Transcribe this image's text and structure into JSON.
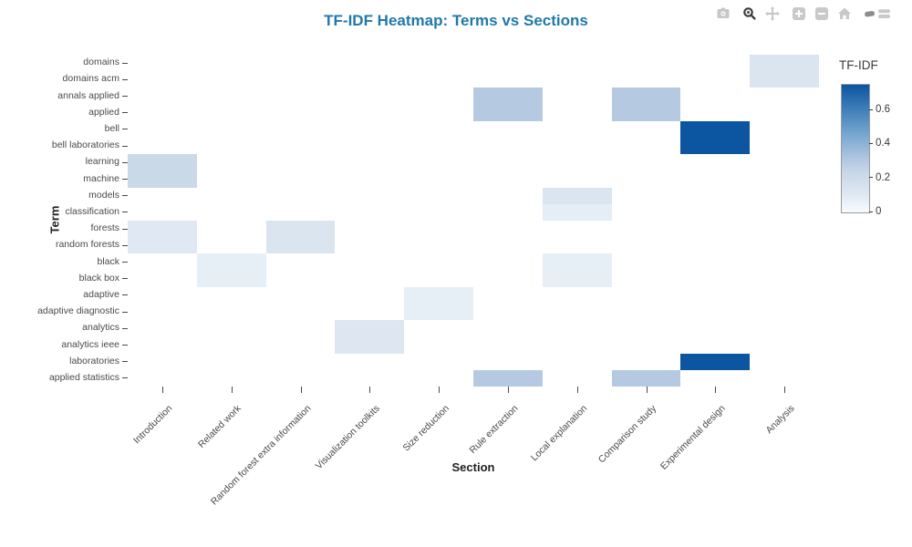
{
  "colors": {
    "title_accent": "#2079a9",
    "dark_cell": "#0b55a1",
    "tick_text": "#4a4a4a"
  },
  "modebar": {
    "icons": [
      "camera-icon",
      "zoom-icon",
      "pan-icon",
      "zoom-in-icon",
      "zoom-out-icon",
      "home-icon",
      "plotly-logo-icon"
    ]
  },
  "chart_data": {
    "type": "heatmap",
    "title": "TF-IDF Heatmap: Terms vs Sections",
    "xlabel": "Section",
    "ylabel": "Term",
    "colorbar_title": "TF-IDF",
    "colorbar_ticks": [
      0,
      0.2,
      0.4,
      0.6
    ],
    "zmin": 0,
    "zmax": 0.75,
    "legend_position": "right",
    "grid": false,
    "x_categories": [
      "Introduction",
      "Related work",
      "Random forest extra information",
      "Visualization toolkits",
      "Size reduction",
      "Rule extraction",
      "Local explanation",
      "Comparison study",
      "Experimental design",
      "Analysis"
    ],
    "y_categories": [
      "domains",
      "domains acm",
      "annals applied",
      "applied",
      "bell",
      "bell laboratories",
      "learning",
      "machine",
      "models",
      "classification",
      "forests",
      "random forests",
      "black",
      "black box",
      "adaptive",
      "adaptive diagnostic",
      "analytics",
      "analytics ieee",
      "laboratories",
      "applied statistics"
    ],
    "matrix": [
      [
        0,
        0,
        0,
        0,
        0,
        0,
        0,
        0,
        0,
        0.13
      ],
      [
        0,
        0,
        0,
        0,
        0,
        0,
        0,
        0,
        0,
        0.13
      ],
      [
        0,
        0,
        0,
        0,
        0,
        0.3,
        0,
        0.3,
        0,
        0
      ],
      [
        0,
        0,
        0,
        0,
        0,
        0.3,
        0,
        0.3,
        0,
        0
      ],
      [
        0,
        0,
        0,
        0,
        0,
        0,
        0,
        0,
        0.75,
        0
      ],
      [
        0,
        0,
        0,
        0,
        0,
        0,
        0,
        0,
        0.75,
        0
      ],
      [
        0.22,
        0,
        0,
        0,
        0,
        0,
        0,
        0,
        0,
        0
      ],
      [
        0.22,
        0,
        0,
        0,
        0,
        0,
        0,
        0,
        0,
        0
      ],
      [
        0,
        0,
        0,
        0,
        0,
        0,
        0.13,
        0,
        0,
        0
      ],
      [
        0,
        0,
        0,
        0,
        0,
        0,
        0.08,
        0,
        0,
        0
      ],
      [
        0.1,
        0,
        0.13,
        0,
        0,
        0,
        0,
        0,
        0,
        0
      ],
      [
        0.1,
        0,
        0.13,
        0,
        0,
        0,
        0,
        0,
        0,
        0
      ],
      [
        0,
        0.07,
        0,
        0,
        0,
        0,
        0.07,
        0,
        0,
        0
      ],
      [
        0,
        0.07,
        0,
        0,
        0,
        0,
        0.07,
        0,
        0,
        0
      ],
      [
        0,
        0,
        0,
        0,
        0.07,
        0,
        0,
        0,
        0,
        0
      ],
      [
        0,
        0,
        0,
        0,
        0.07,
        0,
        0,
        0,
        0,
        0
      ],
      [
        0,
        0,
        0,
        0.11,
        0,
        0,
        0,
        0,
        0,
        0
      ],
      [
        0,
        0,
        0,
        0.11,
        0,
        0,
        0,
        0,
        0,
        0
      ],
      [
        0,
        0,
        0,
        0,
        0,
        0,
        0,
        0,
        0.75,
        0
      ],
      [
        0,
        0,
        0,
        0,
        0,
        0.3,
        0,
        0.3,
        0,
        0
      ]
    ],
    "colorscale": [
      [
        0,
        "#f7fbff"
      ],
      [
        0.15,
        "#dde7f1"
      ],
      [
        0.3,
        "#c9d8e8"
      ],
      [
        0.42,
        "#b1c7e0"
      ],
      [
        0.65,
        "#6b9fcc"
      ],
      [
        1,
        "#0b55a1"
      ]
    ]
  }
}
